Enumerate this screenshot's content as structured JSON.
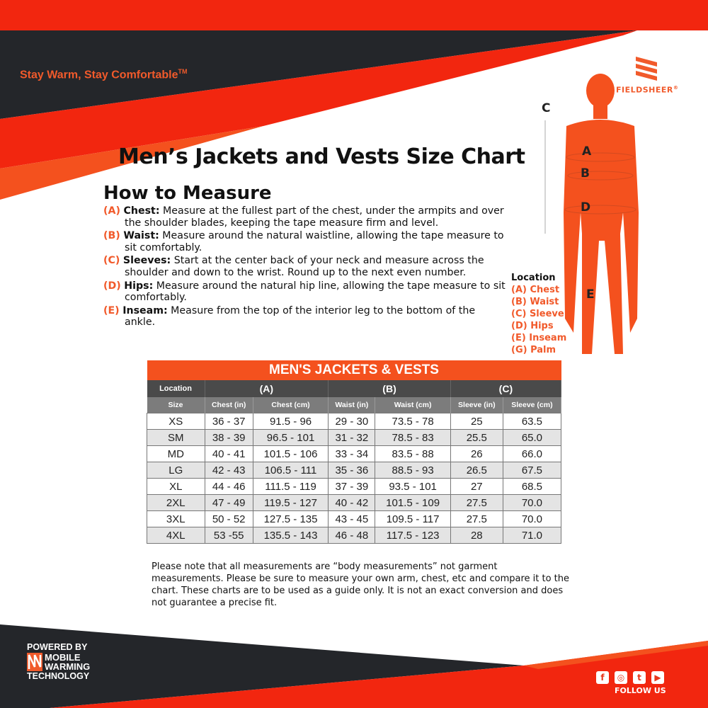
{
  "header": {
    "tagline": "Stay Warm, Stay Comfortable",
    "tagline_tm": "TM",
    "brand": "FIELDSHEER",
    "brand_mark": "®"
  },
  "title": "Men’s Jackets and Vests Size Chart",
  "how_to": {
    "heading": "How to Measure",
    "items": [
      {
        "code": "(A)",
        "term": "Chest:",
        "text": " Measure at the fullest part of the chest, under the armpits and over the shoulder blades, keeping the tape measure firm and level."
      },
      {
        "code": "(B)",
        "term": "Waist:",
        "text": " Measure around the natural waistline, allowing the tape measure to sit comfortably."
      },
      {
        "code": "(C)",
        "term": "Sleeves:",
        "text": " Start at the center back of your neck and measure across the shoulder and down to the wrist. Round up to the next even number."
      },
      {
        "code": "(D)",
        "term": "Hips:",
        "text": " Measure around the natural hip line, allowing the tape measure to sit comfortably."
      },
      {
        "code": "(E)",
        "term": "Inseam:",
        "text": " Measure from the top of the interior leg to the bottom of the ankle."
      }
    ]
  },
  "figure": {
    "labels": [
      "C",
      "A",
      "B",
      "D",
      "E"
    ],
    "location_heading": "Location",
    "locations": [
      "(A) Chest",
      "(B) Waist",
      "(C) Sleeve",
      "(D) Hips",
      "(E) Inseam",
      "(G) Palm"
    ]
  },
  "table": {
    "title": "MEN'S JACKETS & VESTS",
    "location_label": "Location",
    "groups": [
      "(A)",
      "(B)",
      "(C)"
    ],
    "columns": [
      "Size",
      "Chest (in)",
      "Chest (cm)",
      "Waist (in)",
      "Waist (cm)",
      "Sleeve (in)",
      "Sleeve (cm)"
    ],
    "rows": [
      [
        "XS",
        "36 - 37",
        "91.5 - 96",
        "29 - 30",
        "73.5 - 78",
        "25",
        "63.5"
      ],
      [
        "SM",
        "38 - 39",
        "96.5 - 101",
        "31 - 32",
        "78.5 - 83",
        "25.5",
        "65.0"
      ],
      [
        "MD",
        "40 - 41",
        "101.5 - 106",
        "33 - 34",
        "83.5 - 88",
        "26",
        "66.0"
      ],
      [
        "LG",
        "42 - 43",
        "106.5 - 111",
        "35 - 36",
        "88.5 - 93",
        "26.5",
        "67.5"
      ],
      [
        "XL",
        "44 - 46",
        "111.5 - 119",
        "37 - 39",
        "93.5 - 101",
        "27",
        "68.5"
      ],
      [
        "2XL",
        "47 - 49",
        "119.5 - 127",
        "40 - 42",
        "101.5 - 109",
        "27.5",
        "70.0"
      ],
      [
        "3XL",
        "50 - 52",
        "127.5 - 135",
        "43 - 45",
        "109.5 - 117",
        "27.5",
        "70.0"
      ],
      [
        "4XL",
        "53 -55",
        "135.5 - 143",
        "46 - 48",
        "117.5 - 123",
        "28",
        "71.0"
      ]
    ]
  },
  "note": "Please note that all measurements are “body measurements” not garment measurements. Please be sure to measure your own arm, chest, etc and compare it to the chart. These charts are to be used as a guide only. It is not an exact conversion and does not guarantee a precise fit.",
  "footer": {
    "powered_by": "POWERED BY",
    "tech_line1": "MOBILE",
    "tech_line2": "WARMING",
    "tech_line3": "TECHNOLOGY",
    "follow": "FOLLOW US",
    "social_icons": [
      "facebook-icon",
      "instagram-icon",
      "twitter-icon",
      "youtube-icon"
    ]
  },
  "colors": {
    "accent": "#f4511e",
    "red": "#f2260f",
    "dark": "#24262a"
  }
}
